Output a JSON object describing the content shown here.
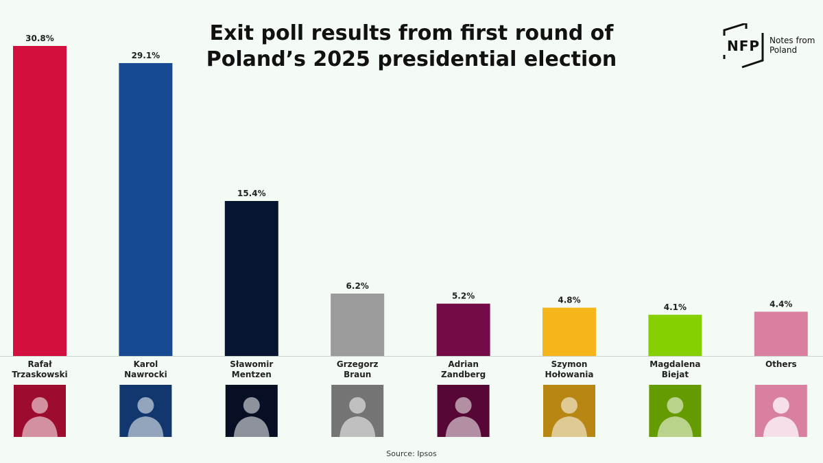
{
  "title": {
    "line1": "Exit poll results from first round of",
    "line2": "Poland’s 2025 presidential election"
  },
  "logo": {
    "brand": "NFP",
    "name_line1": "Notes from",
    "name_line2": "Poland"
  },
  "source": "Source: Ipsos",
  "chart_data": {
    "type": "bar",
    "title": "Exit poll results from first round of Poland’s 2025 presidential election",
    "xlabel": "",
    "ylabel": "",
    "ylim": [
      0,
      30.8
    ],
    "grid": false,
    "legend": "none",
    "value_suffix": "%",
    "categories": [
      [
        "Rafał",
        "Trzaskowski"
      ],
      [
        "Karol",
        "Nawrocki"
      ],
      [
        "Sławomir",
        "Mentzen"
      ],
      [
        "Grzegorz",
        "Braun"
      ],
      [
        "Adrian",
        "Zandberg"
      ],
      [
        "Szymon",
        "Hołowania"
      ],
      [
        "Magdalena",
        "Biejat"
      ],
      [
        "Others"
      ]
    ],
    "values": [
      30.8,
      29.1,
      15.4,
      6.2,
      5.2,
      4.8,
      4.1,
      4.4
    ],
    "labels": [
      "30.8%",
      "29.1%",
      "15.4%",
      "6.2%",
      "5.2%",
      "4.8%",
      "4.1%",
      "4.4%"
    ],
    "colors": [
      "#d20f3f",
      "#174a93",
      "#081530",
      "#9b9b9b",
      "#750a48",
      "#f6b51a",
      "#86cf00",
      "#d87fa2"
    ]
  }
}
